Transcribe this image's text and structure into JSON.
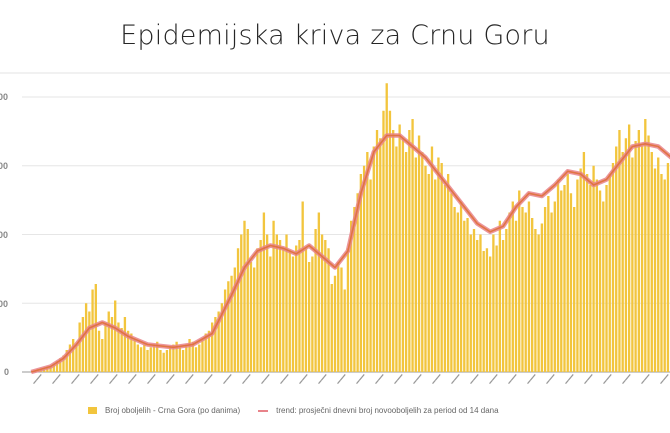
{
  "title": "Epidemijska kriva za Crnu Goru",
  "legend": {
    "bars": "Broj oboljelih - Crna Gora (po danima)",
    "line": "trend: prosječni dnevni broj novooboljelih za period od 14 dana"
  },
  "colors": {
    "bars": "#f2c53d",
    "line": "#e8838a",
    "line_core": "#e0703a",
    "grid": "#e6e6e6"
  },
  "chart_data": {
    "type": "bar",
    "title": "Epidemijska kriva za Crnu Goru",
    "xlabel": "",
    "ylabel": "",
    "y_tick_labels_visible": [
      "00",
      "00",
      "00",
      "00",
      "0"
    ],
    "gridlines": 5,
    "grid": true,
    "legend_position": "bottom",
    "ylim_relative": [
      0,
      1
    ],
    "note": "Y tick labels are cropped at the left edge; values below are relative heights (fraction of top gridline). X-axis date labels are rotated and illegible.",
    "series": [
      {
        "name": "Broj oboljelih - Crna Gora (po danima)",
        "type": "bar",
        "values": [
          0.0,
          0.0,
          0.01,
          0.01,
          0.01,
          0.02,
          0.02,
          0.03,
          0.04,
          0.05,
          0.06,
          0.08,
          0.1,
          0.12,
          0.1,
          0.18,
          0.2,
          0.25,
          0.22,
          0.3,
          0.32,
          0.15,
          0.12,
          0.18,
          0.22,
          0.2,
          0.26,
          0.18,
          0.16,
          0.2,
          0.15,
          0.14,
          0.12,
          0.1,
          0.09,
          0.1,
          0.08,
          0.09,
          0.1,
          0.11,
          0.08,
          0.07,
          0.08,
          0.09,
          0.1,
          0.11,
          0.09,
          0.08,
          0.1,
          0.12,
          0.11,
          0.09,
          0.1,
          0.12,
          0.14,
          0.15,
          0.18,
          0.2,
          0.22,
          0.25,
          0.3,
          0.33,
          0.35,
          0.38,
          0.45,
          0.5,
          0.55,
          0.52,
          0.4,
          0.38,
          0.45,
          0.48,
          0.58,
          0.5,
          0.42,
          0.55,
          0.5,
          0.48,
          0.45,
          0.5,
          0.44,
          0.42,
          0.46,
          0.48,
          0.62,
          0.45,
          0.4,
          0.42,
          0.52,
          0.58,
          0.5,
          0.48,
          0.45,
          0.32,
          0.35,
          0.4,
          0.38,
          0.3,
          0.45,
          0.55,
          0.6,
          0.65,
          0.72,
          0.75,
          0.8,
          0.7,
          0.82,
          0.88,
          0.85,
          0.95,
          1.05,
          0.95,
          0.88,
          0.82,
          0.9,
          0.85,
          0.8,
          0.88,
          0.92,
          0.78,
          0.86,
          0.8,
          0.75,
          0.72,
          0.82,
          0.7,
          0.78,
          0.76,
          0.68,
          0.72,
          0.65,
          0.6,
          0.58,
          0.62,
          0.55,
          0.56,
          0.5,
          0.52,
          0.48,
          0.5,
          0.44,
          0.45,
          0.42,
          0.5,
          0.46,
          0.55,
          0.48,
          0.52,
          0.58,
          0.62,
          0.55,
          0.66,
          0.6,
          0.58,
          0.62,
          0.56,
          0.52,
          0.5,
          0.54,
          0.6,
          0.64,
          0.58,
          0.62,
          0.7,
          0.66,
          0.68,
          0.72,
          0.65,
          0.6,
          0.7,
          0.74,
          0.8,
          0.72,
          0.68,
          0.75,
          0.7,
          0.66,
          0.62,
          0.68,
          0.72,
          0.76,
          0.82,
          0.88,
          0.8,
          0.85,
          0.9,
          0.78,
          0.84,
          0.88,
          0.82,
          0.92,
          0.86,
          0.8,
          0.74,
          0.78,
          0.72,
          0.7,
          0.76
        ]
      },
      {
        "name": "trend: prosječni dnevni broj novooboljelih za period od 14 dana",
        "type": "line",
        "points": [
          [
            0,
            0
          ],
          [
            6,
            0.02
          ],
          [
            10,
            0.05
          ],
          [
            14,
            0.1
          ],
          [
            18,
            0.16
          ],
          [
            22,
            0.18
          ],
          [
            26,
            0.16
          ],
          [
            30,
            0.13
          ],
          [
            36,
            0.1
          ],
          [
            44,
            0.09
          ],
          [
            50,
            0.1
          ],
          [
            56,
            0.14
          ],
          [
            62,
            0.28
          ],
          [
            66,
            0.38
          ],
          [
            70,
            0.44
          ],
          [
            74,
            0.46
          ],
          [
            78,
            0.45
          ],
          [
            82,
            0.43
          ],
          [
            86,
            0.46
          ],
          [
            90,
            0.42
          ],
          [
            94,
            0.38
          ],
          [
            98,
            0.44
          ],
          [
            102,
            0.65
          ],
          [
            106,
            0.8
          ],
          [
            110,
            0.86
          ],
          [
            114,
            0.86
          ],
          [
            118,
            0.82
          ],
          [
            122,
            0.78
          ],
          [
            126,
            0.72
          ],
          [
            130,
            0.66
          ],
          [
            134,
            0.6
          ],
          [
            138,
            0.54
          ],
          [
            142,
            0.51
          ],
          [
            146,
            0.53
          ],
          [
            150,
            0.6
          ],
          [
            154,
            0.65
          ],
          [
            158,
            0.64
          ],
          [
            162,
            0.68
          ],
          [
            166,
            0.73
          ],
          [
            170,
            0.72
          ],
          [
            174,
            0.68
          ],
          [
            178,
            0.7
          ],
          [
            182,
            0.76
          ],
          [
            186,
            0.82
          ],
          [
            190,
            0.83
          ],
          [
            194,
            0.82
          ],
          [
            198,
            0.78
          ],
          [
            199,
            0.77
          ]
        ]
      }
    ]
  }
}
